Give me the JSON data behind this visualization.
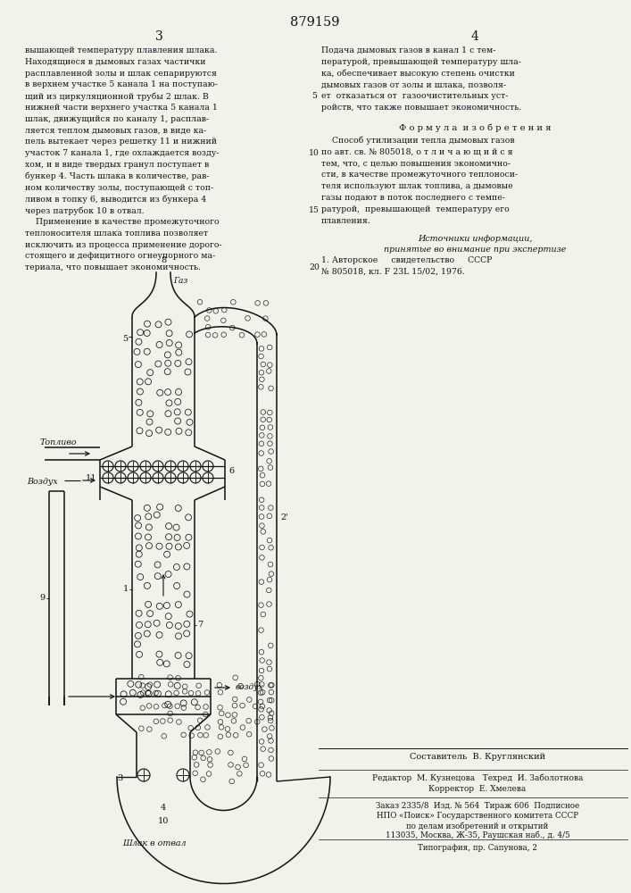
{
  "patent_number": "879159",
  "page_left": "3",
  "page_right": "4",
  "background_color": "#f2f2ed",
  "text_color": "#111111",
  "col1_text": [
    "вышающей температуру плавления шлака.",
    "Находящиеся в дымовых газах частички",
    "расплавленной золы и шлак сепарируются",
    "в верхнем участке 5 канала 1 на поступаю-",
    "щий из циркуляционной трубы 2 шлак. В",
    "нижней части верхнего участка 5 канала 1",
    "шлак, движущийся по каналу 1, расплав-",
    "ляется теплом дымовых газов, в виде ка-",
    "пель вытекает через решетку 11 и нижний",
    "участок 7 канала 1, где охлаждается возду-",
    "хом, и в виде твердых гранул поступает в",
    "бункер 4. Часть шлака в количестве, рав-",
    "ном количеству золы, поступающей с топ-",
    "ливом в топку 6, выводится из бункера 4",
    "через патрубок 10 в отвал.",
    "    Применение в качестве промежуточного",
    "теплоносителя шлака топлива позволяет",
    "исключить из процесса применение дорого-",
    "стоящего и дефицитного огнеупорного ма-",
    "териала, что повышает экономичность."
  ],
  "col2_text_top": [
    "Подача дымовых газов в канал 1 с тем-",
    "пературой, превышающей температуру шла-",
    "ка, обеспечивает высокую степень очистки",
    "дымовых газов от золы и шлака, позволя-",
    "ет  отказаться от  газоочистительных уст-",
    "ройств, что также повышает экономичность."
  ],
  "formula_title": "Ф о р м у л а  и з о б р е т е н и я",
  "formula_text": [
    "    Способ утилизации тепла дымовых газов",
    "по авт. св. № 805018, о т л и ч а ю щ и й с я",
    "тем, что, с целью повышения экономично-",
    "сти, в качестве промежуточного теплоноси-",
    "теля используют шлак топлива, а дымовые",
    "газы подают в поток последнего с темпе-",
    "ратурой,  превышающей  температуру его",
    "плавления."
  ],
  "sources_title": "Источники информации,",
  "sources_subtitle": "принятые во внимание при экспертизе",
  "source1": "1. Авторское     свидетельство     СССР",
  "source2": "№ 805018, кл. F 23L 15/02, 1976.",
  "line_num_5": "5",
  "line_num_10": "10",
  "line_num_15": "15",
  "line_num_20": "20",
  "bottom_author": "Составитель  В. Круглянский",
  "bottom_bold_author": "В. Круглянский",
  "bottom_line1a": "Редактор  М. Кузнецова",
  "bottom_line1b": "Техред  И. Заболотнова",
  "bottom_line2": "Корректор  Е. Хмелева",
  "bottom_line3": "Заказ 2335/8  Изд. № 564  Тираж 606  Подписное",
  "bottom_line4": "НПО «Поиск» Государственного комитета СССР",
  "bottom_line5": "по делам изобретений и открытий",
  "bottom_line6": "113035, Москва, Ж-35, Раушская наб., д. 4/5",
  "bottom_line7": "Типография, пр. Сапунова, 2",
  "diag_8": "8",
  "diag_gas": "Газ",
  "diag_5": "5",
  "diag_topplivo": "Топливо",
  "diag_vozduh": "Воздух",
  "diag_11": "11",
  "diag_6": "6",
  "diag_2": "2'",
  "diag_1": "1",
  "diag_9": "9",
  "diag_7": "7",
  "diag_vozduh2": "воздух",
  "diag_3": "3",
  "diag_4": "4",
  "diag_10": "10",
  "diag_shlak": "Шлак в отвал"
}
